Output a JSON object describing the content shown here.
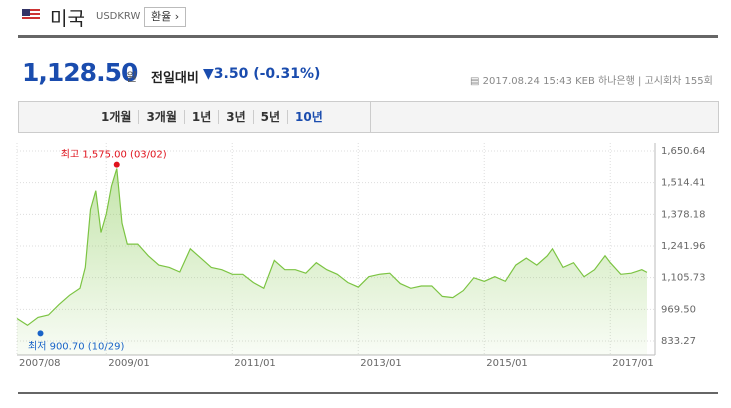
{
  "header": {
    "title": "미국",
    "code": "USDKRW",
    "button": "환율"
  },
  "quote": {
    "price": "1,128.50",
    "unit": "원",
    "change_label": "전일대비",
    "change": "▼3.50",
    "change_pct": "(-0.31%)",
    "datetime": "2017.08.24 15:43",
    "bank": "KEB 하나은행",
    "round": "고시회차 155회"
  },
  "tabs": [
    "1개월",
    "3개월",
    "1년",
    "3년",
    "5년",
    "10년"
  ],
  "active_tab": 5,
  "chart_data": {
    "type": "line",
    "color": "#7cc443",
    "x": [
      "2007/08",
      "2007/10",
      "2007/12",
      "2008/02",
      "2008/04",
      "2008/06",
      "2008/08",
      "2008/09",
      "2008/10",
      "2008/11",
      "2008/12",
      "2009/01",
      "2009/02",
      "2009/03",
      "2009/04",
      "2009/05",
      "2009/07",
      "2009/09",
      "2009/11",
      "2010/01",
      "2010/03",
      "2010/05",
      "2010/07",
      "2010/09",
      "2010/11",
      "2011/01",
      "2011/03",
      "2011/05",
      "2011/07",
      "2011/09",
      "2011/11",
      "2012/01",
      "2012/03",
      "2012/05",
      "2012/07",
      "2012/09",
      "2012/11",
      "2013/01",
      "2013/03",
      "2013/05",
      "2013/07",
      "2013/09",
      "2013/11",
      "2014/01",
      "2014/03",
      "2014/05",
      "2014/07",
      "2014/09",
      "2014/11",
      "2015/01",
      "2015/03",
      "2015/05",
      "2015/07",
      "2015/09",
      "2015/11",
      "2016/01",
      "2016/02",
      "2016/04",
      "2016/06",
      "2016/08",
      "2016/10",
      "2016/12",
      "2017/01",
      "2017/03",
      "2017/05",
      "2017/07",
      "2017/08"
    ],
    "values": [
      930,
      900.7,
      935,
      945,
      990,
      1030,
      1060,
      1150,
      1400,
      1480,
      1300,
      1380,
      1500,
      1575,
      1340,
      1250,
      1250,
      1200,
      1160,
      1150,
      1130,
      1230,
      1190,
      1150,
      1140,
      1120,
      1120,
      1085,
      1060,
      1180,
      1140,
      1140,
      1125,
      1170,
      1140,
      1120,
      1085,
      1065,
      1110,
      1120,
      1125,
      1080,
      1060,
      1070,
      1070,
      1025,
      1020,
      1050,
      1105,
      1090,
      1110,
      1090,
      1160,
      1190,
      1160,
      1200,
      1230,
      1150,
      1170,
      1110,
      1140,
      1200,
      1170,
      1120,
      1125,
      1140,
      1128.5
    ],
    "xticks": [
      "2007/08",
      "2009/01",
      "2011/01",
      "2013/01",
      "2015/01",
      "2017/01"
    ],
    "ylim": [
      833.27,
      1650.64
    ],
    "yticks": [
      {
        "value": 1650.64,
        "label": "1,650.64"
      },
      {
        "value": 1514.41,
        "label": "1,514.41"
      },
      {
        "value": 1378.18,
        "label": "1,378.18"
      },
      {
        "value": 1241.96,
        "label": "1,241.96"
      },
      {
        "value": 1105.73,
        "label": "1,105.73"
      },
      {
        "value": 969.5,
        "label": "969.50"
      },
      {
        "value": 833.27,
        "label": "833.27"
      }
    ],
    "annotations": [
      {
        "text": "최고 1,575.00 (03/02)",
        "x": "2009/03",
        "color": "#e0141e"
      },
      {
        "text": "최저 900.70 (10/29)",
        "x": "2007/10",
        "color": "#1a64c8"
      }
    ]
  }
}
